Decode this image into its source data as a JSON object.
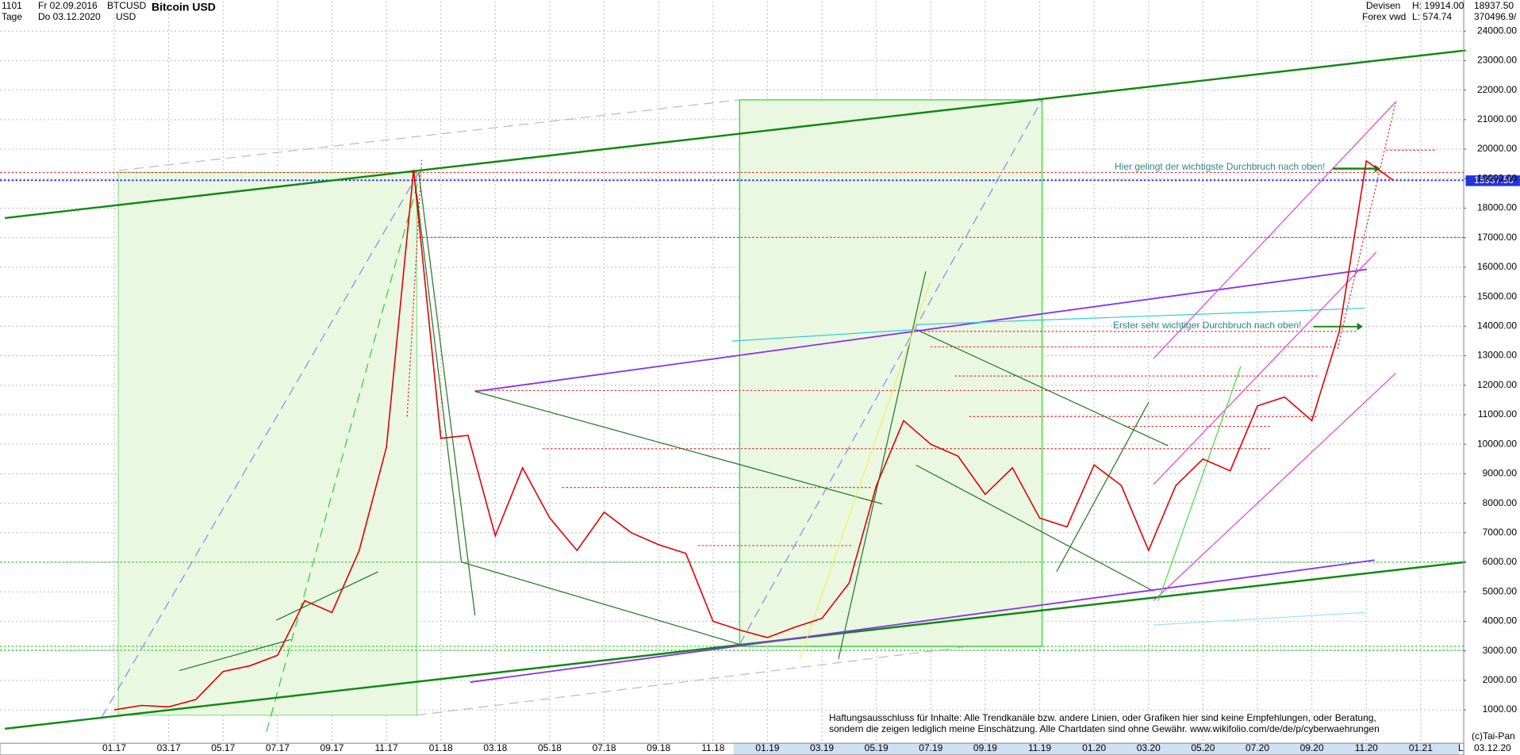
{
  "header": {
    "id": "1101",
    "from": "Fr 02.09.2016",
    "period": "Tage",
    "to": "Do 03.12.2020",
    "symbol": "BTCUSD",
    "currency": "USD",
    "market": "Devisen",
    "source": "Forex vwd",
    "high": "H: 19914.00",
    "low": "L: 574.74",
    "last": "18937.50",
    "volume": "370496.9/"
  },
  "annotations": [
    "Hier gelingt der wichtigste Durchbruch nach oben!",
    "Erster sehr wichtiger Durchbruch nach oben!"
  ],
  "disclaimer": [
    "Haftungsausschluss für Inhalte: Alle Trendkanäle bzw. andere Linien, oder Grafiken hier sind keine Empfehlungen, oder Beratung,",
    "sondern die zeigen lediglich meine  Einschätzung. Alle Chartdaten sind ohne Gewähr.  www.wikifolio.com/de/de/p/cyberwaehrungen"
  ],
  "footer": {
    "copyright": "(c)Tai-Pan",
    "date": "03.12.20",
    "scale": "L"
  },
  "chart_data": {
    "type": "line",
    "title": "Bitcoin USD",
    "categories": [
      "01.17",
      null,
      "03.17",
      null,
      "05.17",
      null,
      "07.17",
      null,
      "09.17",
      null,
      "11.17",
      null,
      "01.18",
      null,
      "03.18",
      null,
      "05.18",
      null,
      "07.18",
      null,
      "09.18",
      null,
      "11.18",
      null,
      "01.19",
      null,
      "03.19",
      null,
      "05.19",
      null,
      "07.19",
      null,
      "09.19",
      null,
      "11.19",
      null,
      "01.20",
      null,
      "03.20",
      null,
      "05.20",
      null,
      "07.20",
      null,
      "09.20",
      null,
      "11.20",
      null,
      "01.21"
    ],
    "series": [
      {
        "name": "BTCUSD",
        "color": "#e00000",
        "values": [
          1000,
          1150,
          1100,
          1350,
          2300,
          2500,
          2850,
          4700,
          4300,
          6400,
          9900,
          19300,
          10200,
          10300,
          6900,
          9200,
          7500,
          6400,
          7700,
          7000,
          6600,
          6300,
          4000,
          3700,
          3450,
          3800,
          4100,
          5300,
          8600,
          10800,
          10000,
          9600,
          8300,
          9200,
          7500,
          7200,
          9300,
          8600,
          6400,
          8600,
          9500,
          9100,
          11300,
          11600,
          10800,
          13800,
          19600,
          18937.5,
          null
        ]
      }
    ],
    "ylim": [
      -100,
      25000
    ],
    "yticks": [
      {
        "value": 1000,
        "label": "1000.00"
      },
      {
        "value": 2000,
        "label": "2000.00"
      },
      {
        "value": 3000,
        "label": "3000.00"
      },
      {
        "value": 4000,
        "label": "4000.00"
      },
      {
        "value": 5000,
        "label": "5000.00"
      },
      {
        "value": 6000,
        "label": "6000.00"
      },
      {
        "value": 7000,
        "label": "7000.00"
      },
      {
        "value": 8000,
        "label": "8000.00"
      },
      {
        "value": 9000,
        "label": "9000.00"
      },
      {
        "value": 10000,
        "label": "10000.00"
      },
      {
        "value": 11000,
        "label": "11000.00"
      },
      {
        "value": 12000,
        "label": "12000.00"
      },
      {
        "value": 13000,
        "label": "13000.00"
      },
      {
        "value": 14000,
        "label": "14000.00"
      },
      {
        "value": 15000,
        "label": "15000.00"
      },
      {
        "value": 16000,
        "label": "16000.00"
      },
      {
        "value": 17000,
        "label": "17000.00"
      },
      {
        "value": 18000,
        "label": "18000.00"
      },
      {
        "value": 19000,
        "label": "19000.00"
      },
      {
        "value": 20000,
        "label": "20000.00"
      },
      {
        "value": 21000,
        "label": "21000.00"
      },
      {
        "value": 22000,
        "label": "22000.00"
      },
      {
        "value": 23000,
        "label": "23000.00"
      },
      {
        "value": 24000,
        "label": "24000.00"
      }
    ],
    "grid": true
  }
}
